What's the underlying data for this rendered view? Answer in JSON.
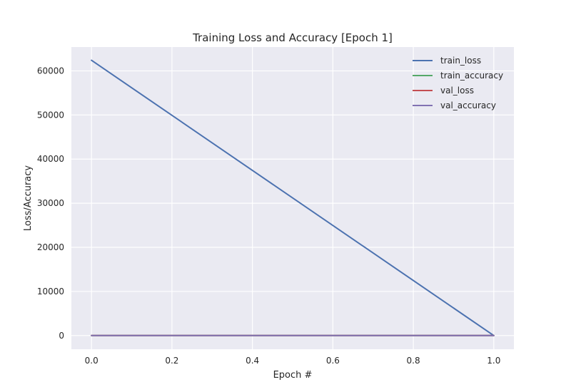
{
  "chart_data": {
    "type": "line",
    "title": "Training Loss and Accuracy [Epoch 1]",
    "xlabel": "Epoch #",
    "ylabel": "Loss/Accuracy",
    "x": [
      0,
      1
    ],
    "xlim": [
      -0.05,
      1.05
    ],
    "ylim": [
      -3100,
      65400
    ],
    "xticks": [
      "0.0",
      "0.2",
      "0.4",
      "0.6",
      "0.8",
      "1.0"
    ],
    "yticks": [
      "0",
      "10000",
      "20000",
      "30000",
      "40000",
      "50000",
      "60000"
    ],
    "grid": true,
    "legend_position": "top-right",
    "background": "#eaeaf2",
    "series": [
      {
        "name": "train_loss",
        "values": [
          62400,
          0
        ],
        "color": "#4c72b0"
      },
      {
        "name": "train_accuracy",
        "values": [
          0,
          0
        ],
        "color": "#55a868"
      },
      {
        "name": "val_loss",
        "values": [
          0,
          0
        ],
        "color": "#c44e52"
      },
      {
        "name": "val_accuracy",
        "values": [
          0,
          0
        ],
        "color": "#8172b2"
      }
    ]
  }
}
